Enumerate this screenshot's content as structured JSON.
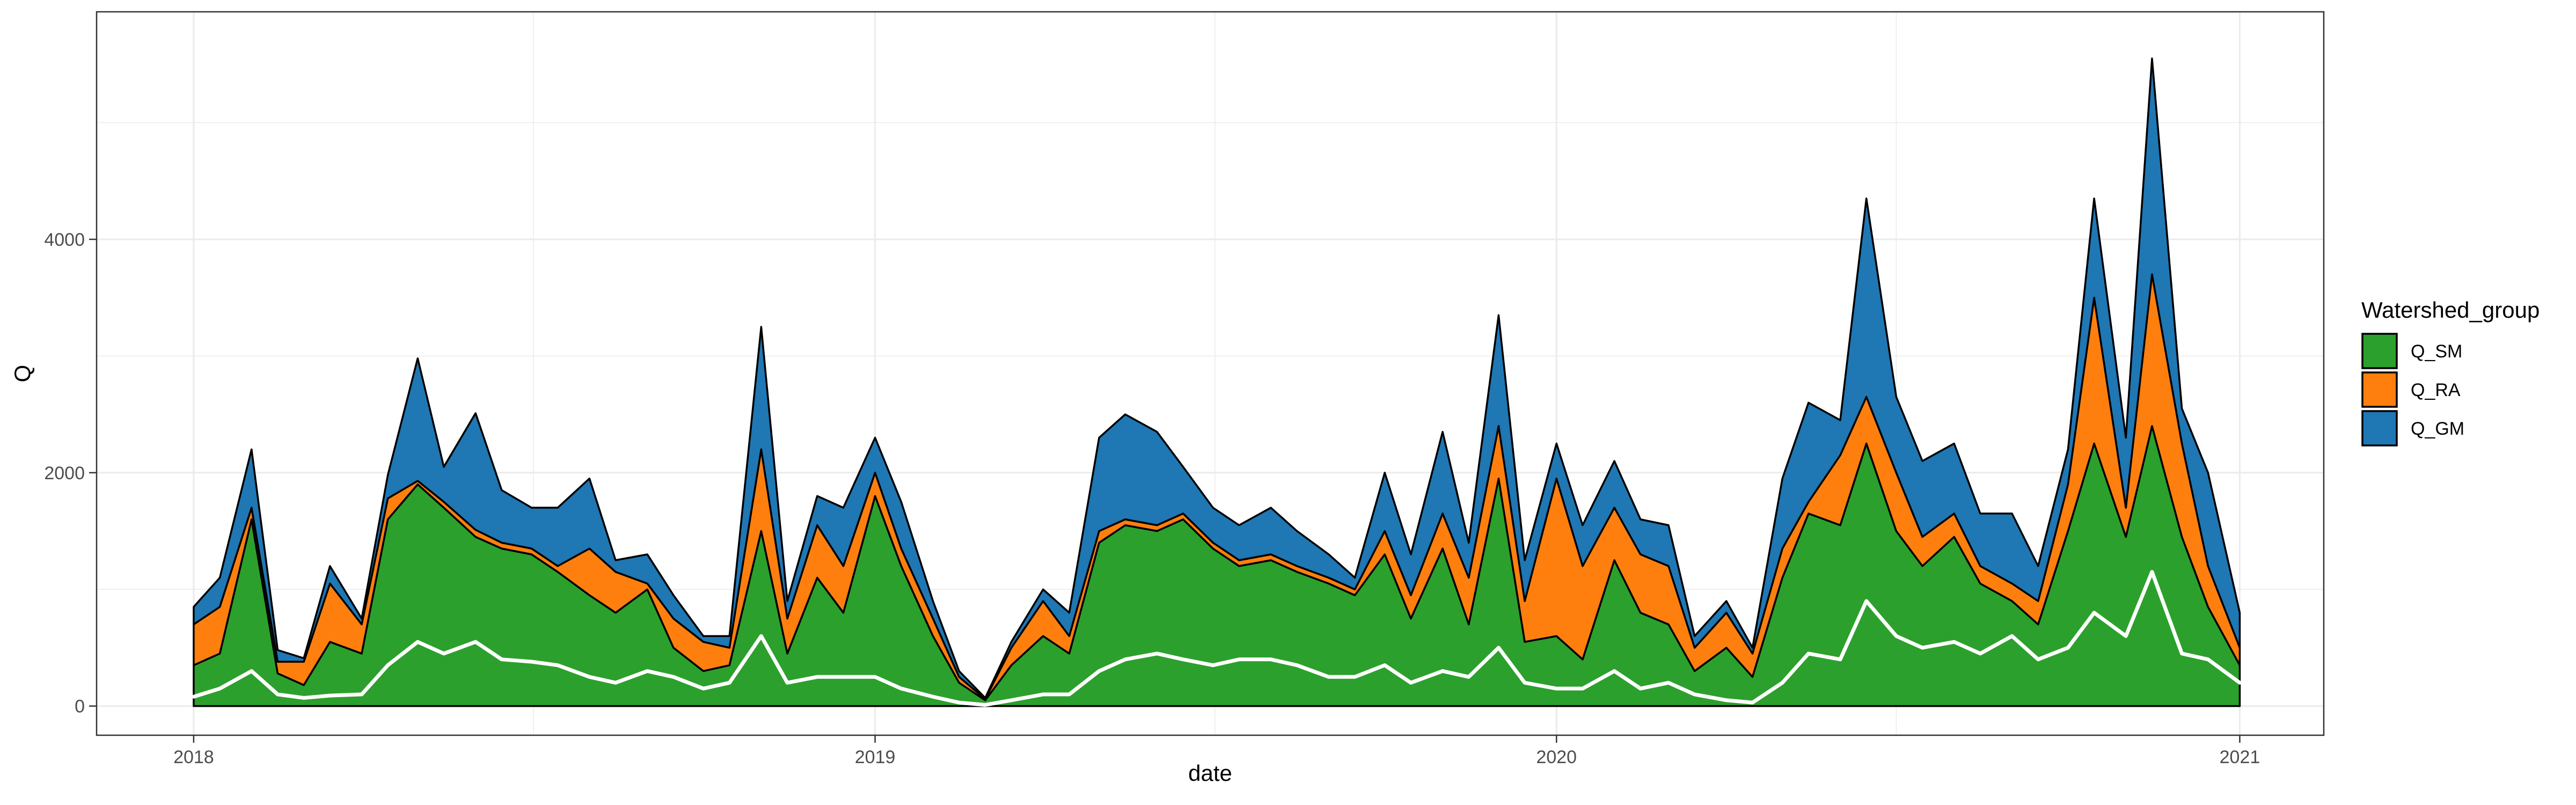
{
  "chart_data": {
    "type": "area",
    "stacked": true,
    "xlabel": "date",
    "ylabel": "Q",
    "xlim": [
      "2017-11-10",
      "2021-02-15"
    ],
    "ylim": [
      -250,
      5950
    ],
    "x_ticks": [
      "2018",
      "2019",
      "2020",
      "2021"
    ],
    "x_tick_dates": [
      "2018-01-01",
      "2019-01-01",
      "2020-01-01",
      "2021-01-01"
    ],
    "y_ticks": [
      0,
      2000,
      4000
    ],
    "grid": true,
    "legend": {
      "title": "Watershed_group",
      "placement": "right"
    },
    "colors": {
      "Q_GM": "#1f77b4",
      "Q_RA": "#ff7f0e",
      "Q_SM": "#2ca02c",
      "line": "#ffffff",
      "outline": "#000000",
      "grid": "#ebebeb"
    },
    "x": [
      "2018-01-01",
      "2018-01-15",
      "2018-02-01",
      "2018-02-15",
      "2018-03-01",
      "2018-03-15",
      "2018-04-01",
      "2018-04-15",
      "2018-05-01",
      "2018-05-15",
      "2018-06-01",
      "2018-06-15",
      "2018-07-01",
      "2018-07-15",
      "2018-08-01",
      "2018-08-15",
      "2018-09-01",
      "2018-09-15",
      "2018-10-01",
      "2018-10-15",
      "2018-11-01",
      "2018-11-15",
      "2018-12-01",
      "2018-12-15",
      "2019-01-01",
      "2019-01-15",
      "2019-02-01",
      "2019-02-15",
      "2019-03-01",
      "2019-03-15",
      "2019-04-01",
      "2019-04-15",
      "2019-05-01",
      "2019-05-15",
      "2019-06-01",
      "2019-06-15",
      "2019-07-01",
      "2019-07-15",
      "2019-08-01",
      "2019-08-15",
      "2019-09-01",
      "2019-09-15",
      "2019-10-01",
      "2019-10-15",
      "2019-11-01",
      "2019-11-15",
      "2019-12-01",
      "2019-12-15",
      "2020-01-01",
      "2020-01-15",
      "2020-02-01",
      "2020-02-15",
      "2020-03-01",
      "2020-03-15",
      "2020-04-01",
      "2020-04-15",
      "2020-05-01",
      "2020-05-15",
      "2020-06-01",
      "2020-06-15",
      "2020-07-01",
      "2020-07-15",
      "2020-08-01",
      "2020-08-15",
      "2020-09-01",
      "2020-09-15",
      "2020-10-01",
      "2020-10-15",
      "2020-11-01",
      "2020-11-15",
      "2020-12-01",
      "2020-12-15",
      "2021-01-01"
    ],
    "series": [
      {
        "name": "Q_SM",
        "values": [
          350,
          450,
          1600,
          280,
          180,
          550,
          450,
          1600,
          1900,
          1700,
          1450,
          1350,
          1300,
          1150,
          950,
          800,
          1000,
          500,
          300,
          350,
          1500,
          450,
          1100,
          800,
          1800,
          1200,
          600,
          200,
          50,
          350,
          600,
          450,
          1400,
          1550,
          1500,
          1600,
          1350,
          1200,
          1250,
          1150,
          1050,
          950,
          1300,
          750,
          1350,
          700,
          1950,
          550,
          600,
          400,
          1250,
          800,
          700,
          300,
          500,
          250,
          1100,
          1650,
          1550,
          2250,
          1500,
          1200,
          1450,
          1050,
          900,
          700,
          1500,
          2250,
          1450,
          2400,
          1450,
          850,
          350
        ]
      },
      {
        "name": "Q_RA",
        "values": [
          350,
          400,
          100,
          100,
          200,
          500,
          250,
          180,
          30,
          50,
          60,
          50,
          50,
          50,
          400,
          350,
          50,
          250,
          250,
          150,
          700,
          300,
          450,
          400,
          200,
          150,
          150,
          50,
          10,
          150,
          300,
          150,
          100,
          50,
          50,
          50,
          50,
          50,
          50,
          50,
          50,
          50,
          200,
          200,
          300,
          400,
          450,
          350,
          1350,
          800,
          450,
          500,
          500,
          200,
          300,
          200,
          250,
          100,
          600,
          400,
          500,
          250,
          200,
          150,
          150,
          200,
          400,
          1250,
          250,
          1300,
          800,
          350,
          150
        ]
      },
      {
        "name": "Q_GM",
        "values": [
          150,
          250,
          500,
          100,
          30,
          150,
          50,
          200,
          1050,
          300,
          1000,
          450,
          350,
          500,
          600,
          100,
          250,
          200,
          50,
          100,
          1050,
          150,
          250,
          500,
          300,
          400,
          150,
          50,
          10,
          50,
          100,
          200,
          800,
          900,
          800,
          400,
          300,
          300,
          400,
          300,
          200,
          100,
          500,
          350,
          700,
          300,
          950,
          350,
          300,
          350,
          400,
          300,
          350,
          100,
          100,
          50,
          600,
          850,
          300,
          1700,
          650,
          650,
          600,
          450,
          600,
          300,
          300,
          850,
          600,
          1850,
          300,
          800,
          300
        ]
      },
      {
        "name": "line",
        "values": [
          80,
          150,
          300,
          100,
          70,
          90,
          100,
          350,
          550,
          450,
          550,
          400,
          380,
          350,
          250,
          200,
          300,
          250,
          150,
          200,
          600,
          200,
          250,
          250,
          250,
          150,
          80,
          30,
          10,
          50,
          100,
          100,
          300,
          400,
          450,
          400,
          350,
          400,
          400,
          350,
          250,
          250,
          350,
          200,
          300,
          250,
          500,
          200,
          150,
          150,
          300,
          150,
          200,
          100,
          50,
          30,
          200,
          450,
          400,
          900,
          600,
          500,
          550,
          450,
          600,
          400,
          500,
          800,
          600,
          1150,
          450,
          400,
          200
        ]
      }
    ]
  }
}
